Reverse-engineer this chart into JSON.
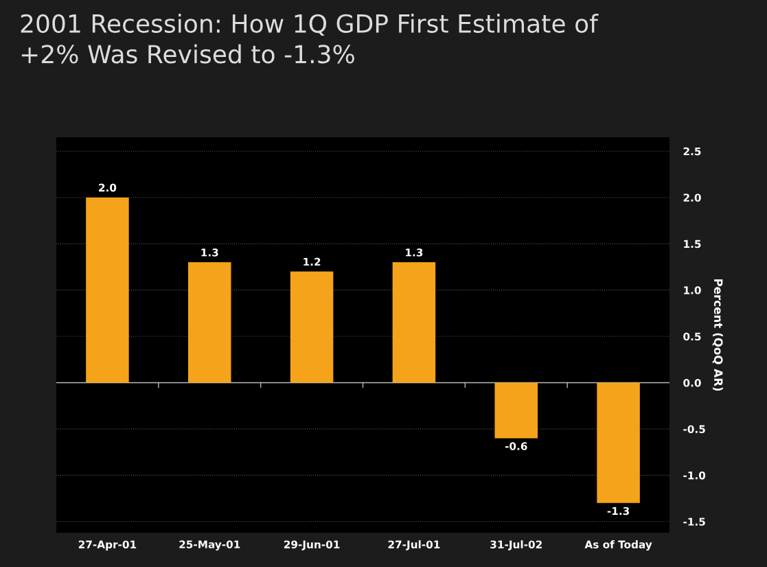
{
  "chart_data": {
    "type": "bar",
    "title": "2001 Recession: How 1Q GDP First Estimate of\n+2% Was Revised to -1.3%",
    "ylabel": "Percent (QoQ AR)",
    "categories": [
      "27-Apr-01",
      "25-May-01",
      "29-Jun-01",
      "27-Jul-01",
      "31-Jul-02",
      "As of Today"
    ],
    "values": [
      2.0,
      1.3,
      1.2,
      1.3,
      -0.6,
      -1.3
    ],
    "value_labels": [
      "2.0",
      "1.3",
      "1.2",
      "1.3",
      "-0.6",
      "-1.3"
    ],
    "color": "#f5a31a",
    "ylim": [
      -1.62,
      2.65
    ],
    "yticks": [
      {
        "value": -1.5,
        "label": "-1.5"
      },
      {
        "value": -1.0,
        "label": "-1.0"
      },
      {
        "value": -0.5,
        "label": "-0.5"
      },
      {
        "value": 0.0,
        "label": "0.0"
      },
      {
        "value": 0.5,
        "label": "0.5"
      },
      {
        "value": 1.0,
        "label": "1.0"
      },
      {
        "value": 1.5,
        "label": "1.5"
      },
      {
        "value": 2.0,
        "label": "2.0"
      },
      {
        "value": 2.5,
        "label": "2.5"
      }
    ],
    "grid": "y",
    "legend": false
  }
}
